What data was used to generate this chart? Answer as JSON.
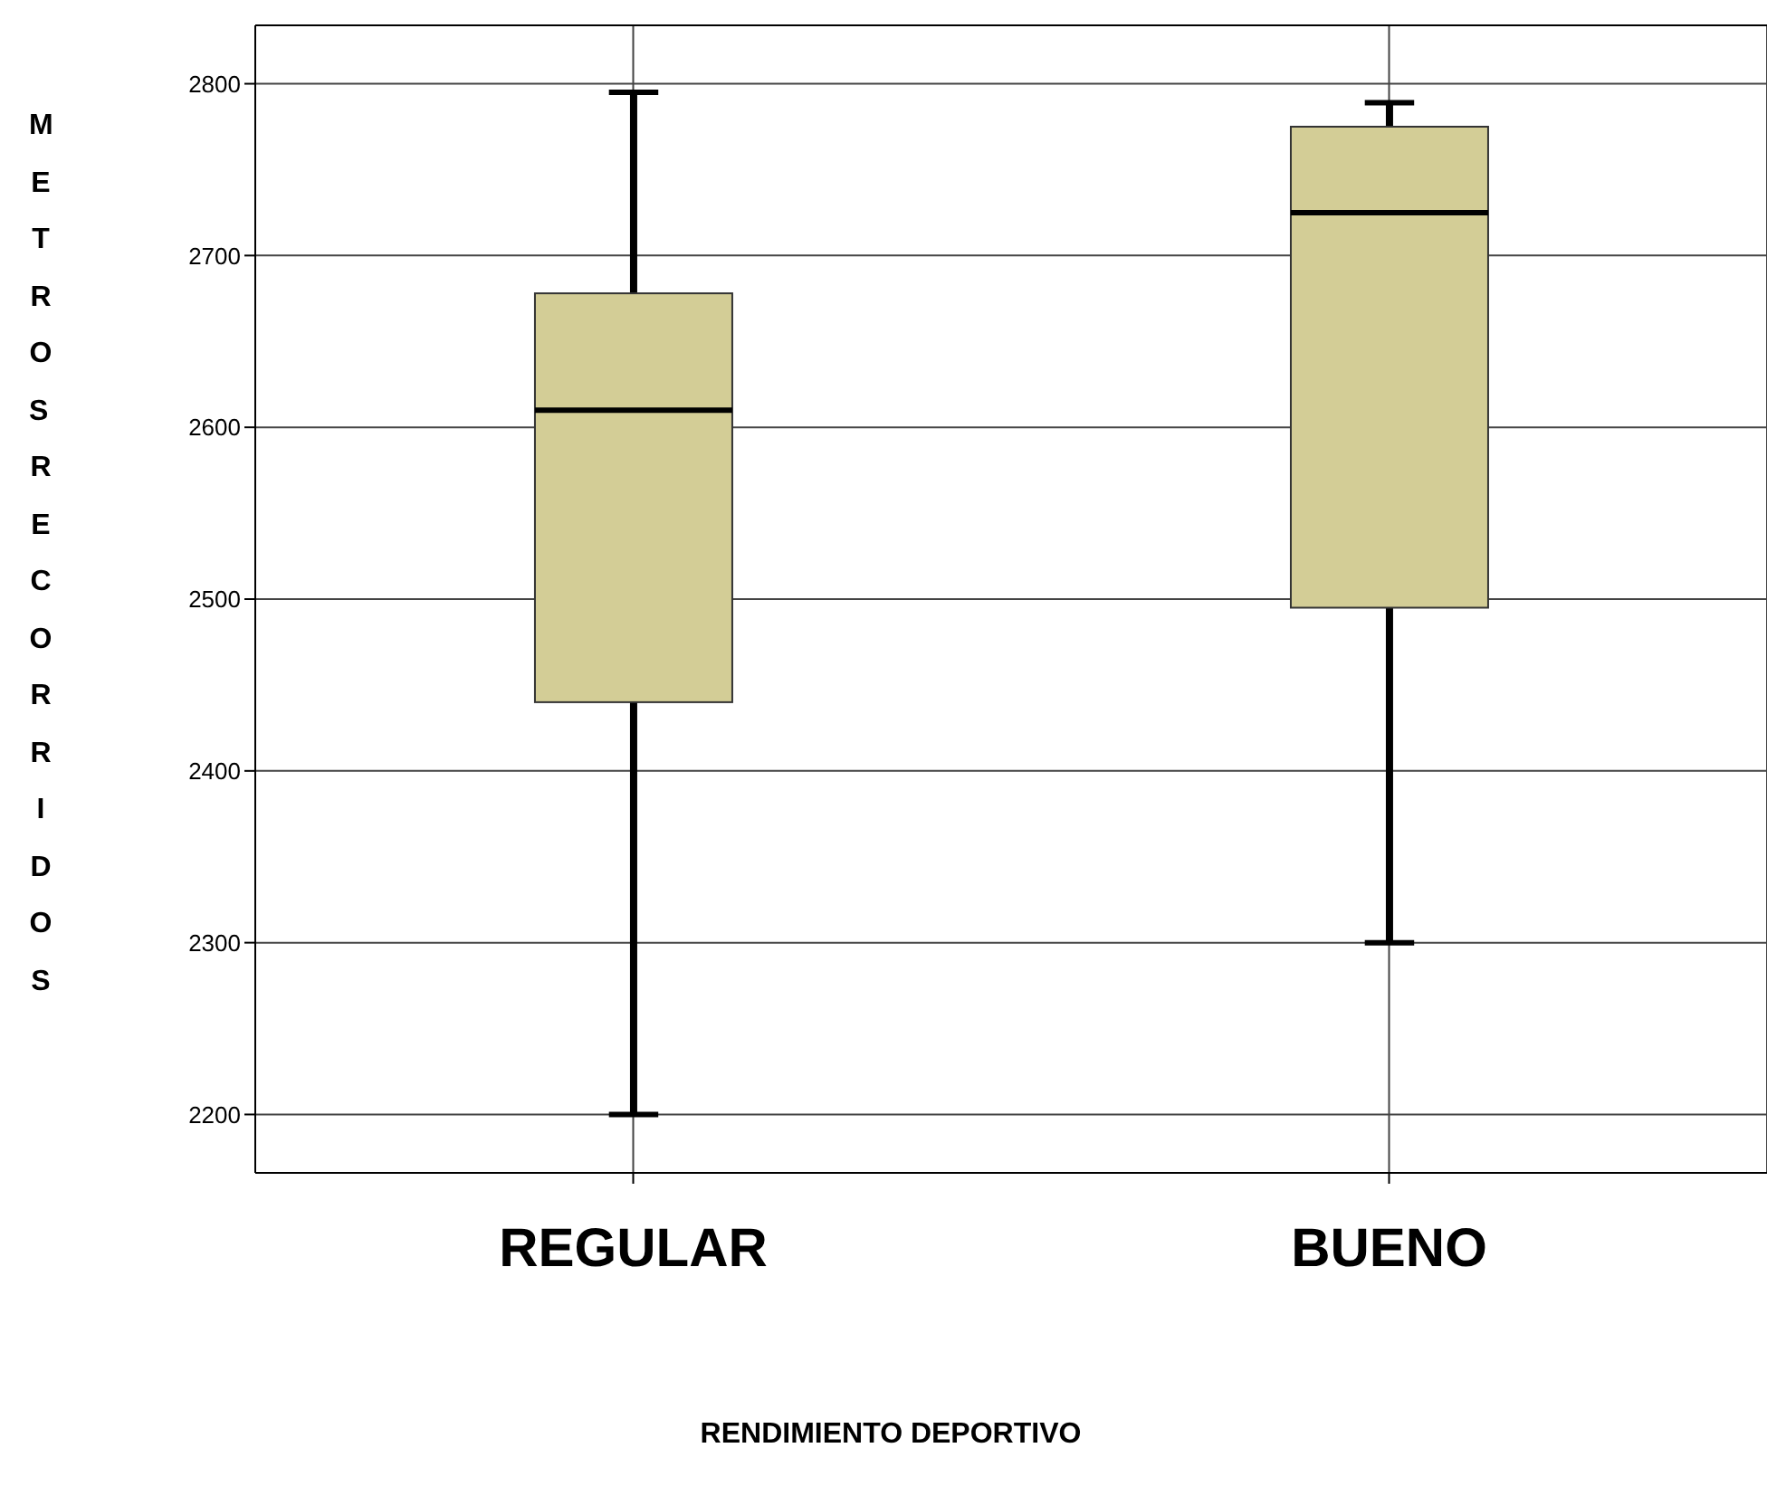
{
  "chart_data": {
    "type": "box",
    "categories": [
      "REGULAR",
      "BUENO"
    ],
    "xlabel": "RENDIMIENTO DEPORTIVO",
    "ylabel": "METROS RECORRIDOS",
    "color": "#d3cd96",
    "boxes": [
      {
        "low": 2200,
        "q1": 2440,
        "median": 2610,
        "q3": 2678,
        "high": 2795
      },
      {
        "low": 2300,
        "q1": 2495,
        "median": 2725,
        "q3": 2775,
        "high": 2789
      }
    ],
    "ylim": [
      2166,
      2834
    ],
    "yticks": [
      2200,
      2300,
      2400,
      2500,
      2600,
      2700,
      2800
    ],
    "grid": true
  }
}
